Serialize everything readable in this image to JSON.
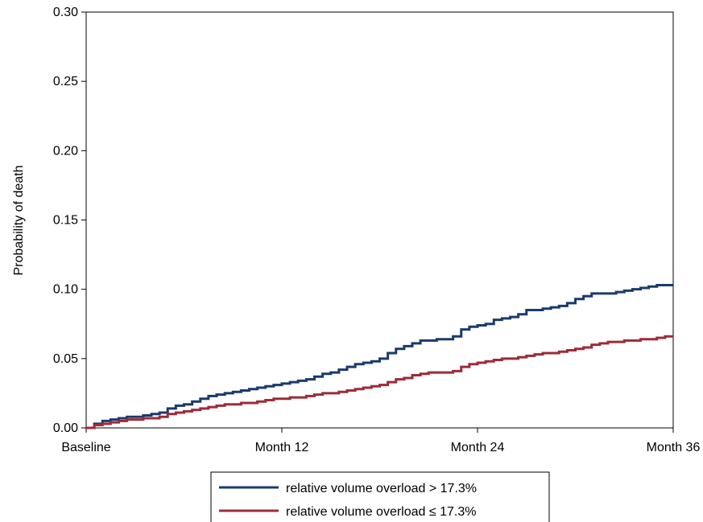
{
  "chart_data": {
    "type": "line",
    "title": "",
    "xlabel": "",
    "ylabel": "Probability of death",
    "xlim": [
      0,
      36
    ],
    "ylim": [
      0,
      0.3
    ],
    "x_ticks": [
      {
        "value": 0,
        "label": "Baseline"
      },
      {
        "value": 12,
        "label": "Month 12"
      },
      {
        "value": 24,
        "label": "Month 24"
      },
      {
        "value": 36,
        "label": "Month 36"
      }
    ],
    "y_ticks": [
      {
        "value": 0.0,
        "label": "0.00"
      },
      {
        "value": 0.05,
        "label": "0.05"
      },
      {
        "value": 0.1,
        "label": "0.10"
      },
      {
        "value": 0.15,
        "label": "0.15"
      },
      {
        "value": 0.2,
        "label": "0.20"
      },
      {
        "value": 0.25,
        "label": "0.25"
      },
      {
        "value": 0.3,
        "label": "0.30"
      }
    ],
    "grid": false,
    "legend_position": "bottom",
    "series": [
      {
        "name": "relative volume overload > 17.3%",
        "color": "#1b3a6b",
        "x": [
          0,
          0.5,
          1,
          1.5,
          2,
          2.5,
          3,
          3.5,
          4,
          4.5,
          5,
          5.5,
          6,
          6.5,
          7,
          7.5,
          8,
          8.5,
          9,
          9.5,
          10,
          10.5,
          11,
          11.5,
          12,
          12.5,
          13,
          13.5,
          14,
          14.5,
          15,
          15.5,
          16,
          16.5,
          17,
          17.5,
          18,
          18.5,
          19,
          19.5,
          20,
          20.5,
          21,
          21.5,
          22,
          22.5,
          23,
          23.5,
          24,
          24.5,
          25,
          25.5,
          26,
          26.5,
          27,
          27.5,
          28,
          28.5,
          29,
          29.5,
          30,
          30.5,
          31,
          31.5,
          32,
          32.5,
          33,
          33.5,
          34,
          34.5,
          35,
          35.5,
          36
        ],
        "y": [
          0.0,
          0.003,
          0.005,
          0.006,
          0.007,
          0.008,
          0.008,
          0.009,
          0.01,
          0.011,
          0.014,
          0.016,
          0.017,
          0.019,
          0.021,
          0.023,
          0.024,
          0.025,
          0.026,
          0.027,
          0.028,
          0.029,
          0.03,
          0.031,
          0.032,
          0.033,
          0.034,
          0.035,
          0.037,
          0.039,
          0.04,
          0.042,
          0.044,
          0.046,
          0.047,
          0.048,
          0.05,
          0.054,
          0.057,
          0.059,
          0.061,
          0.063,
          0.063,
          0.064,
          0.064,
          0.066,
          0.071,
          0.073,
          0.074,
          0.075,
          0.078,
          0.079,
          0.08,
          0.082,
          0.085,
          0.085,
          0.086,
          0.087,
          0.088,
          0.09,
          0.093,
          0.095,
          0.097,
          0.097,
          0.097,
          0.098,
          0.099,
          0.1,
          0.101,
          0.102,
          0.103,
          0.103,
          0.103
        ]
      },
      {
        "name": "relative volume overload ≤ 17.3%",
        "color": "#9b2c3a",
        "x": [
          0,
          0.5,
          1,
          1.5,
          2,
          2.5,
          3,
          3.5,
          4,
          4.5,
          5,
          5.5,
          6,
          6.5,
          7,
          7.5,
          8,
          8.5,
          9,
          9.5,
          10,
          10.5,
          11,
          11.5,
          12,
          12.5,
          13,
          13.5,
          14,
          14.5,
          15,
          15.5,
          16,
          16.5,
          17,
          17.5,
          18,
          18.5,
          19,
          19.5,
          20,
          20.5,
          21,
          21.5,
          22,
          22.5,
          23,
          23.5,
          24,
          24.5,
          25,
          25.5,
          26,
          26.5,
          27,
          27.5,
          28,
          28.5,
          29,
          29.5,
          30,
          30.5,
          31,
          31.5,
          32,
          32.5,
          33,
          33.5,
          34,
          34.5,
          35,
          35.5,
          36
        ],
        "y": [
          0.0,
          0.002,
          0.003,
          0.004,
          0.005,
          0.006,
          0.006,
          0.007,
          0.007,
          0.008,
          0.01,
          0.011,
          0.012,
          0.013,
          0.014,
          0.015,
          0.016,
          0.017,
          0.017,
          0.018,
          0.018,
          0.019,
          0.02,
          0.021,
          0.021,
          0.022,
          0.022,
          0.023,
          0.024,
          0.025,
          0.025,
          0.026,
          0.027,
          0.028,
          0.029,
          0.03,
          0.031,
          0.033,
          0.035,
          0.036,
          0.038,
          0.039,
          0.04,
          0.04,
          0.04,
          0.041,
          0.044,
          0.046,
          0.047,
          0.048,
          0.049,
          0.05,
          0.05,
          0.051,
          0.052,
          0.053,
          0.054,
          0.054,
          0.055,
          0.056,
          0.057,
          0.058,
          0.06,
          0.061,
          0.062,
          0.062,
          0.063,
          0.063,
          0.064,
          0.064,
          0.065,
          0.066,
          0.066
        ]
      }
    ]
  }
}
